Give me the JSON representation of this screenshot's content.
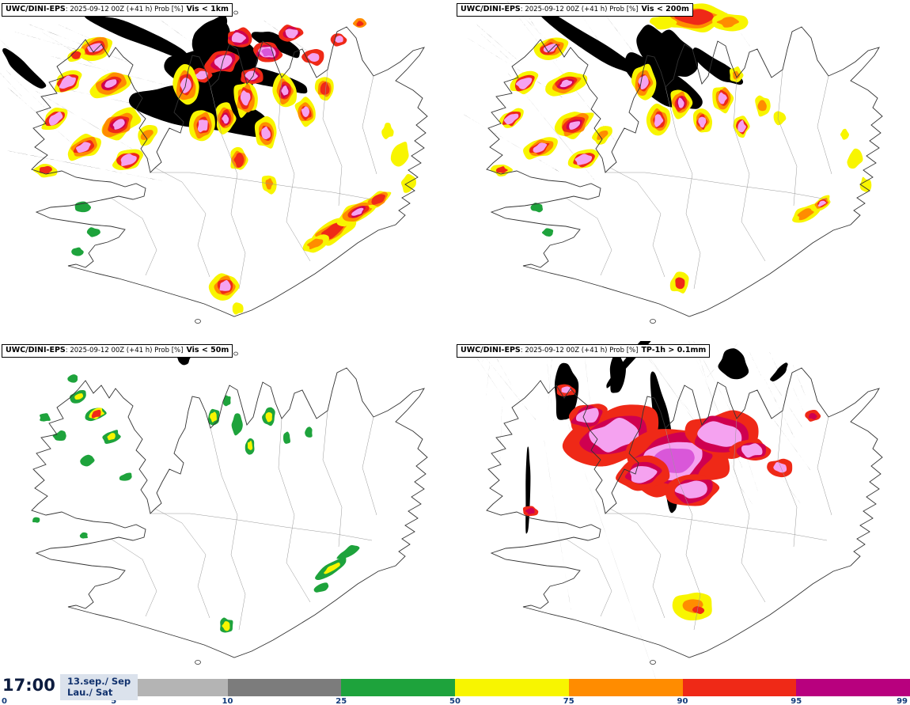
{
  "panels": [
    {
      "model": "UWC/DINI-EPS",
      "run_info": ": 2025-09-12 00Z (+41 h) Prob [%]",
      "param": "Vis < 1km"
    },
    {
      "model": "UWC/DINI-EPS",
      "run_info": ": 2025-09-12 00Z (+41 h) Prob [%]",
      "param": "Vis < 200m"
    },
    {
      "model": "UWC/DINI-EPS",
      "run_info": ": 2025-09-12 00Z (+41 h) Prob [%]",
      "param": "Vis < 50m"
    },
    {
      "model": "UWC/DINI-EPS",
      "run_info": ": 2025-09-12 00Z (+41 h) Prob [%]",
      "param": "TP-1h > 0.1mm"
    }
  ],
  "footer": {
    "time": "17:00",
    "date_top": "13.sep./ Sep",
    "date_bottom": "Lau./ Sat"
  },
  "legend": {
    "ticks": [
      "0",
      "5",
      "10",
      "25",
      "50",
      "75",
      "90",
      "95",
      "99"
    ],
    "segment_colors": [
      "#ffffff",
      "#b4b4b4",
      "#7c7c7c",
      "#1ea33c",
      "#f8f500",
      "#ff8c00",
      "#ef2917",
      "#b8007e"
    ]
  },
  "palette": {
    "lightgray": "#b4b4b4",
    "gray": "#7c7c7c",
    "green": "#1ea33c",
    "yellow": "#f8f500",
    "orange": "#ff8c00",
    "red": "#ef2917",
    "crimson": "#cf0050",
    "pink": "#f5a2f0",
    "violet": "#d957d9",
    "darkred": "#8f0000",
    "coast": "#333333",
    "boundary": "#989898",
    "tick_text": "#123a7a",
    "time_text": "#0d1c3f",
    "datebox_bg": "#dbe2ec"
  }
}
